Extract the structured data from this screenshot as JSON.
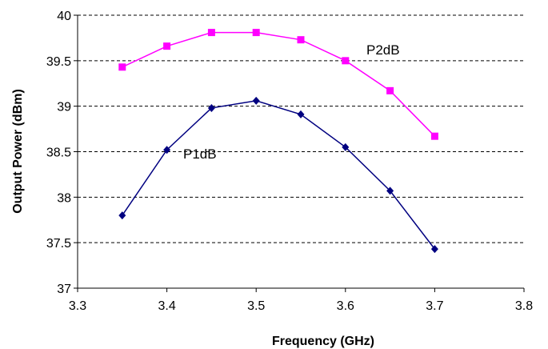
{
  "chart_data": {
    "type": "line",
    "title": "",
    "xlabel": "Frequency (GHz)",
    "ylabel": "Output Power (dBm)",
    "xlim": [
      3.3,
      3.8
    ],
    "ylim": [
      37,
      40
    ],
    "xticks": [
      "3.3",
      "3.4",
      "3.5",
      "3.6",
      "3.7",
      "3.8"
    ],
    "yticks": [
      "37",
      "37.5",
      "38",
      "38.5",
      "39",
      "39.5",
      "40"
    ],
    "grid": "horizontal dashed",
    "legend": "none (inline series labels)",
    "x": [
      3.35,
      3.4,
      3.45,
      3.5,
      3.55,
      3.6,
      3.65,
      3.7
    ],
    "series": [
      {
        "name": "P2dB",
        "color": "#ff00ff",
        "marker": "square",
        "values": [
          39.43,
          39.66,
          39.81,
          39.81,
          39.73,
          39.5,
          39.17,
          38.67
        ]
      },
      {
        "name": "P1dB",
        "color": "#000080",
        "marker": "diamond",
        "values": [
          37.8,
          38.52,
          38.98,
          39.06,
          38.91,
          38.55,
          38.07,
          37.43
        ]
      }
    ]
  }
}
